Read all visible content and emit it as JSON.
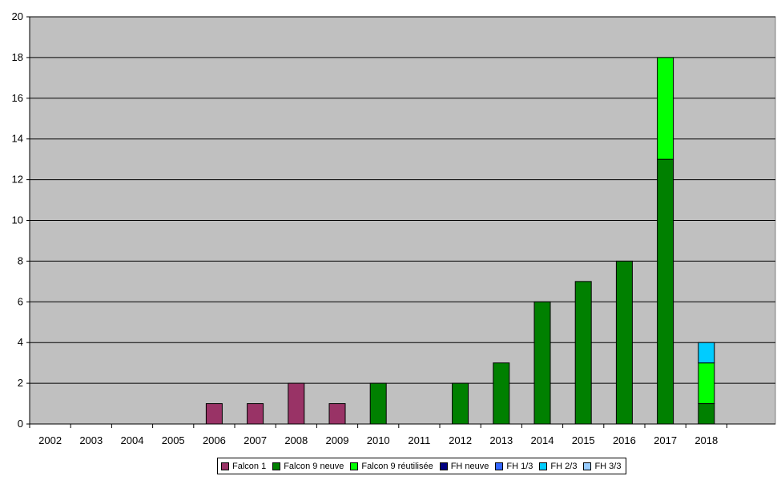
{
  "chart_data": {
    "type": "bar",
    "stacked": true,
    "categories": [
      "2002",
      "2003",
      "2004",
      "2005",
      "2006",
      "2007",
      "2008",
      "2009",
      "2010",
      "2011",
      "2012",
      "2013",
      "2014",
      "2015",
      "2016",
      "2017",
      "2018"
    ],
    "series": [
      {
        "name": "Falcon 1",
        "color": "#993366",
        "values": [
          0,
          0,
          0,
          0,
          1,
          1,
          2,
          1,
          0,
          0,
          0,
          0,
          0,
          0,
          0,
          0,
          0
        ]
      },
      {
        "name": "Falcon 9 neuve",
        "color": "#008000",
        "values": [
          0,
          0,
          0,
          0,
          0,
          0,
          0,
          0,
          2,
          0,
          2,
          3,
          6,
          7,
          8,
          13,
          1
        ]
      },
      {
        "name": "Falcon 9 réutilisée",
        "color": "#00ff00",
        "values": [
          0,
          0,
          0,
          0,
          0,
          0,
          0,
          0,
          0,
          0,
          0,
          0,
          0,
          0,
          0,
          5,
          2
        ]
      },
      {
        "name": "FH neuve",
        "color": "#000080",
        "values": [
          0,
          0,
          0,
          0,
          0,
          0,
          0,
          0,
          0,
          0,
          0,
          0,
          0,
          0,
          0,
          0,
          0
        ]
      },
      {
        "name": "FH 1/3",
        "color": "#3366ff",
        "values": [
          0,
          0,
          0,
          0,
          0,
          0,
          0,
          0,
          0,
          0,
          0,
          0,
          0,
          0,
          0,
          0,
          0
        ]
      },
      {
        "name": "FH 2/3",
        "color": "#00ccff",
        "values": [
          0,
          0,
          0,
          0,
          0,
          0,
          0,
          0,
          0,
          0,
          0,
          0,
          0,
          0,
          0,
          0,
          1
        ]
      },
      {
        "name": "FH 3/3",
        "color": "#99ccff",
        "values": [
          0,
          0,
          0,
          0,
          0,
          0,
          0,
          0,
          0,
          0,
          0,
          0,
          0,
          0,
          0,
          0,
          0
        ]
      }
    ],
    "ylim": [
      0,
      20
    ],
    "yticks": [
      0,
      2,
      4,
      6,
      8,
      10,
      12,
      14,
      16,
      18,
      20
    ],
    "title": "",
    "xlabel": "",
    "ylabel": "",
    "grid": true,
    "legend_position": "bottom",
    "plot_background": "#c0c0c0"
  }
}
